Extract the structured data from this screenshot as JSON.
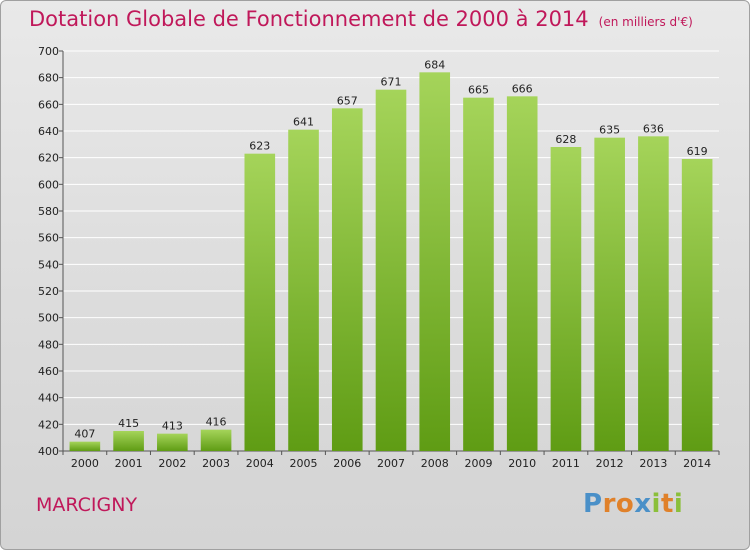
{
  "title": "Dotation Globale de Fonctionnement de 2000 à 2014",
  "unit": "(en milliers d'€)",
  "commune": "MARCIGNY",
  "brand": "Proxiti",
  "colors": {
    "bar_top": "#a5d45a",
    "bar_bottom": "#5f9c14",
    "title": "#c0185a",
    "grid": "#ffffff"
  },
  "chart_data": {
    "type": "bar",
    "title": "Dotation Globale de Fonctionnement de 2000 à 2014",
    "subtitle": "(en milliers d'€)",
    "xlabel": "",
    "ylabel": "",
    "ylim": [
      400,
      700
    ],
    "y_ticks": [
      400,
      420,
      440,
      460,
      480,
      500,
      520,
      540,
      560,
      580,
      600,
      620,
      640,
      660,
      680,
      700
    ],
    "grid": true,
    "categories": [
      "2000",
      "2001",
      "2002",
      "2003",
      "2004",
      "2005",
      "2006",
      "2007",
      "2008",
      "2009",
      "2010",
      "2011",
      "2012",
      "2013",
      "2014"
    ],
    "values": [
      407,
      415,
      413,
      416,
      623,
      641,
      657,
      671,
      684,
      665,
      666,
      628,
      635,
      636,
      619
    ]
  }
}
